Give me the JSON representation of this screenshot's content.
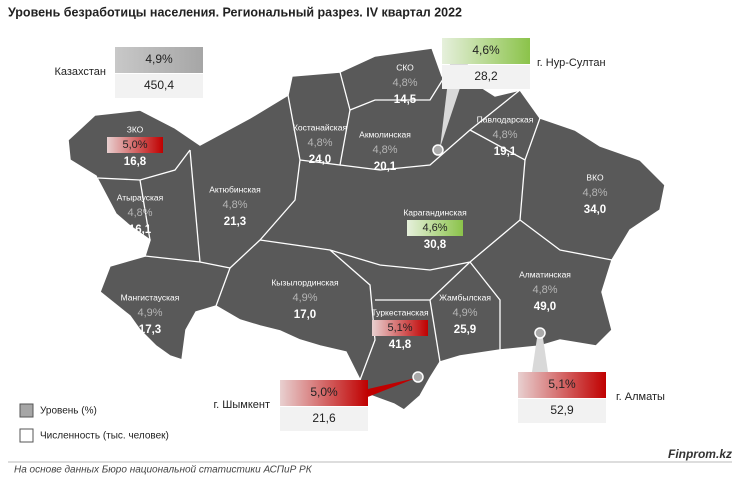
{
  "title": "Уровень безработицы населения. Региональный разрез. IV квартал 2022",
  "national": {
    "name": "Казахстан",
    "rate": "4,9%",
    "count": "450,4"
  },
  "regions": [
    {
      "name": "ЗКО",
      "rate": "5,0%",
      "count": "16,8",
      "highlight": "red"
    },
    {
      "name": "Атырауская",
      "rate": "4,8%",
      "count": "16,1"
    },
    {
      "name": "Мангистауская",
      "rate": "4,9%",
      "count": "17,3"
    },
    {
      "name": "Актюбинская",
      "rate": "4,8%",
      "count": "21,3"
    },
    {
      "name": "Костанайская",
      "rate": "4,8%",
      "count": "24,0"
    },
    {
      "name": "СКО",
      "rate": "4,8%",
      "count": "14,5"
    },
    {
      "name": "Акмолинская",
      "rate": "4,8%",
      "count": "20,1"
    },
    {
      "name": "Павлодарская",
      "rate": "4,8%",
      "count": "19,1"
    },
    {
      "name": "ВКО",
      "rate": "4,8%",
      "count": "34,0"
    },
    {
      "name": "Карагандинская",
      "rate": "4,6%",
      "count": "30,8",
      "highlight": "green"
    },
    {
      "name": "Кызылординская",
      "rate": "4,9%",
      "count": "17,0"
    },
    {
      "name": "Туркестанская",
      "rate": "5,1%",
      "count": "41,8",
      "highlight": "red"
    },
    {
      "name": "Жамбылская",
      "rate": "4,9%",
      "count": "25,9"
    },
    {
      "name": "Алматинская",
      "rate": "4,8%",
      "count": "49,0"
    }
  ],
  "cities": [
    {
      "name": "г. Нур-Султан",
      "rate": "4,6%",
      "count": "28,2",
      "highlight": "green"
    },
    {
      "name": "г. Шымкент",
      "rate": "5,0%",
      "count": "21,6",
      "highlight": "red"
    },
    {
      "name": "г. Алматы",
      "rate": "5,1%",
      "count": "52,9",
      "highlight": "red"
    }
  ],
  "legend": [
    "Уровень (%)",
    "Численность (тыс. человек)"
  ],
  "source": "На основе данных Бюро национальной статистики АСПиР РК",
  "brand": "Finprom.kz"
}
